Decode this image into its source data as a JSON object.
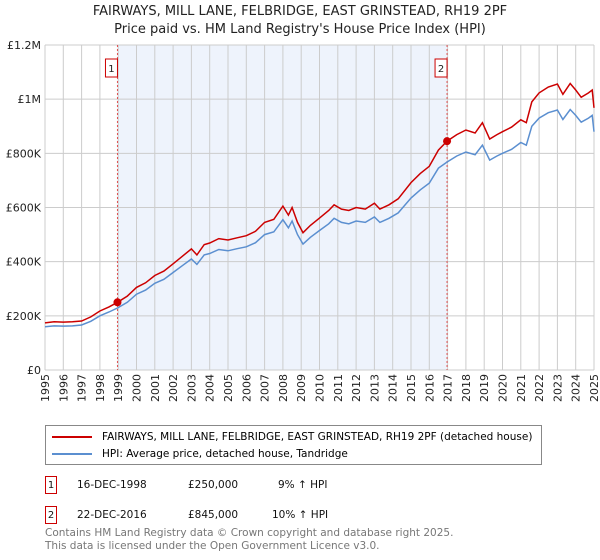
{
  "chart_data": {
    "type": "line",
    "title": "FAIRWAYS, MILL LANE, FELBRIDGE, EAST GRINSTEAD, RH19 2PF",
    "subtitle": "Price paid vs. HM Land Registry's House Price Index (HPI)",
    "xlim": [
      1995,
      2025
    ],
    "ylim": [
      0,
      1200000
    ],
    "x_ticks": [
      "1995",
      "1996",
      "1997",
      "1998",
      "1999",
      "2000",
      "2001",
      "2002",
      "2003",
      "2004",
      "2005",
      "2006",
      "2007",
      "2008",
      "2009",
      "2010",
      "2011",
      "2012",
      "2013",
      "2014",
      "2015",
      "2016",
      "2017",
      "2018",
      "2019",
      "2020",
      "2021",
      "2022",
      "2023",
      "2024",
      "2025"
    ],
    "y_ticks": [
      {
        "value": 0,
        "label": "£0"
      },
      {
        "value": 200000,
        "label": "£200K"
      },
      {
        "value": 400000,
        "label": "£400K"
      },
      {
        "value": 600000,
        "label": "£600K"
      },
      {
        "value": 800000,
        "label": "£800K"
      },
      {
        "value": 1000000,
        "label": "£1M"
      },
      {
        "value": 1200000,
        "label": "£1.2M"
      }
    ],
    "grid": true,
    "shaded_range": [
      1998.96,
      2016.97
    ],
    "colors": {
      "property": "#cc0000",
      "hpi": "#5b8fd0",
      "shade": "#eef3fc",
      "grid": "#cccccc"
    },
    "series": [
      {
        "name": "property",
        "x": [
          1995,
          1995.5,
          1996,
          1996.5,
          1997,
          1997.5,
          1998,
          1998.5,
          1998.96,
          1999.5,
          2000,
          2000.5,
          2001,
          2001.5,
          2002,
          2002.5,
          2003,
          2003.3,
          2003.7,
          2004,
          2004.5,
          2005,
          2005.5,
          2006,
          2006.5,
          2007,
          2007.5,
          2008,
          2008.3,
          2008.5,
          2008.8,
          2009.1,
          2009.5,
          2010,
          2010.5,
          2010.8,
          2011.2,
          2011.6,
          2012,
          2012.5,
          2013,
          2013.3,
          2013.8,
          2014.3,
          2015,
          2015.5,
          2016,
          2016.5,
          2016.97,
          2017.5,
          2018,
          2018.5,
          2018.9,
          2019.3,
          2019.7,
          2020,
          2020.5,
          2021,
          2021.3,
          2021.6,
          2022,
          2022.5,
          2023,
          2023.3,
          2023.7,
          2024,
          2024.3,
          2024.7,
          2024.9,
          2025
        ],
        "values": [
          174,
          178,
          177,
          178,
          181,
          196,
          218,
          233,
          250,
          273,
          305,
          322,
          349,
          365,
          392,
          420,
          447,
          425,
          463,
          469,
          485,
          480,
          488,
          496,
          512,
          545,
          556,
          605,
          572,
          600,
          545,
          507,
          534,
          561,
          589,
          610,
          594,
          589,
          600,
          594,
          616,
          594,
          610,
          632,
          692,
          725,
          752,
          812,
          845,
          869,
          886,
          875,
          913,
          853,
          869,
          880,
          897,
          924,
          913,
          990,
          1023,
          1045,
          1056,
          1018,
          1058,
          1034,
          1007,
          1023,
          1034,
          968
        ]
      },
      {
        "name": "hpi",
        "x": [
          1995,
          1995.5,
          1996,
          1996.5,
          1997,
          1997.5,
          1998,
          1998.5,
          1998.96,
          1999.5,
          2000,
          2000.5,
          2001,
          2001.5,
          2002,
          2002.5,
          2003,
          2003.3,
          2003.7,
          2004,
          2004.5,
          2005,
          2005.5,
          2006,
          2006.5,
          2007,
          2007.5,
          2008,
          2008.3,
          2008.5,
          2008.8,
          2009.1,
          2009.5,
          2010,
          2010.5,
          2010.8,
          2011.2,
          2011.6,
          2012,
          2012.5,
          2013,
          2013.3,
          2013.8,
          2014.3,
          2015,
          2015.5,
          2016,
          2016.5,
          2016.97,
          2017.5,
          2018,
          2018.5,
          2018.9,
          2019.3,
          2019.7,
          2020,
          2020.5,
          2021,
          2021.3,
          2021.6,
          2022,
          2022.5,
          2023,
          2023.3,
          2023.7,
          2024,
          2024.3,
          2024.7,
          2024.9,
          2025
        ],
        "values": [
          160,
          163,
          162,
          163,
          166,
          180,
          200,
          214,
          229,
          250,
          280,
          295,
          320,
          335,
          360,
          385,
          410,
          390,
          425,
          430,
          445,
          440,
          448,
          455,
          470,
          500,
          510,
          555,
          525,
          550,
          500,
          465,
          490,
          515,
          540,
          560,
          545,
          540,
          550,
          545,
          565,
          545,
          560,
          580,
          635,
          665,
          690,
          745,
          768,
          790,
          805,
          795,
          830,
          775,
          790,
          800,
          815,
          840,
          830,
          900,
          930,
          950,
          960,
          925,
          962,
          940,
          915,
          930,
          940,
          880
        ]
      }
    ],
    "value_unit": "thousand GBP",
    "sales": [
      {
        "label": "1",
        "x": 1998.96,
        "value": 250000
      },
      {
        "label": "2",
        "x": 2016.97,
        "value": 845000
      }
    ],
    "legend": {
      "placement": "bottom",
      "entries": [
        "FAIRWAYS, MILL LANE, FELBRIDGE, EAST GRINSTEAD, RH19 2PF (detached house)",
        "HPI: Average price, detached house, Tandridge"
      ]
    }
  },
  "sales_table": [
    {
      "num": "1",
      "date": "16-DEC-1998",
      "price": "£250,000",
      "hpi": "9% ↑ HPI"
    },
    {
      "num": "2",
      "date": "22-DEC-2016",
      "price": "£845,000",
      "hpi": "10% ↑ HPI"
    }
  ],
  "footer": {
    "line1": "Contains HM Land Registry data © Crown copyright and database right 2025.",
    "line2": "This data is licensed under the Open Government Licence v3.0."
  }
}
